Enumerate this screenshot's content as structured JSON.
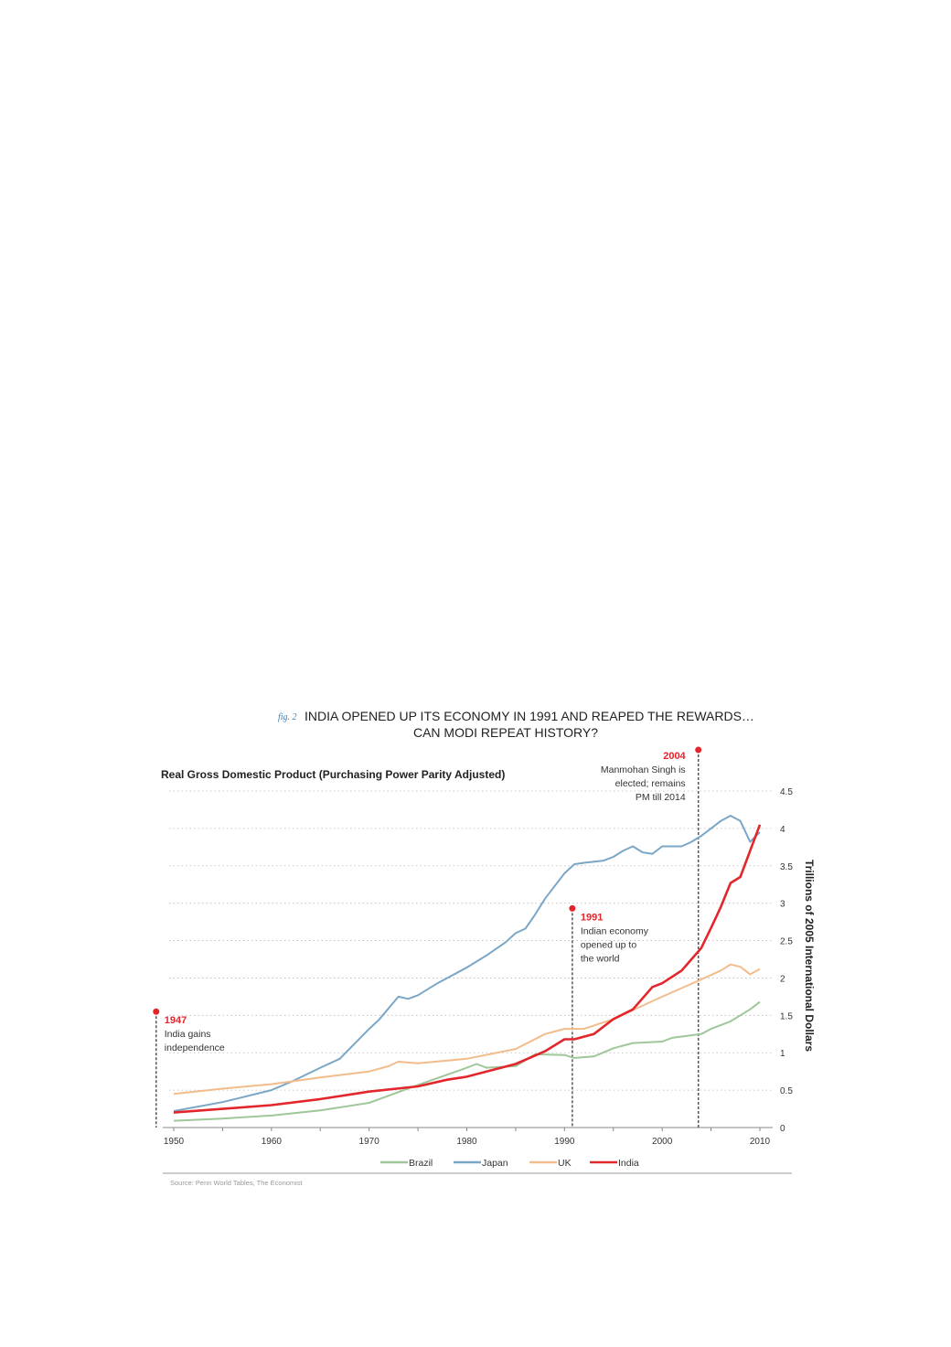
{
  "chart_data": {
    "type": "line",
    "fig_label": "fig. 2",
    "title_line1": "INDIA OPENED UP ITS ECONOMY IN 1991 AND REAPED THE REWARDS…",
    "title_line2": "CAN MODI REPEAT HISTORY?",
    "subtitle": "Real Gross Domestic Product (Purchasing Power Parity Adjusted)",
    "ylabel": "Trillions of 2005 International Dollars",
    "xlabel": "",
    "xlim": [
      1950,
      2010
    ],
    "ylim": [
      0,
      4.5
    ],
    "xticks": [
      "1950",
      "1960",
      "1970",
      "1980",
      "1990",
      "2000",
      "2010"
    ],
    "yticks": [
      "0",
      "0.5",
      "1",
      "1.5",
      "2",
      "2.5",
      "3",
      "3.5",
      "4",
      "4.5"
    ],
    "grid": true,
    "legend_position": "bottom",
    "source": "Source: Penn World Tables, The Economist",
    "series": [
      {
        "name": "Brazil",
        "color": "#9fc79a",
        "points": [
          [
            1950,
            0.09
          ],
          [
            1955,
            0.12
          ],
          [
            1960,
            0.16
          ],
          [
            1965,
            0.23
          ],
          [
            1970,
            0.33
          ],
          [
            1975,
            0.57
          ],
          [
            1980,
            0.8
          ],
          [
            1981,
            0.85
          ],
          [
            1982,
            0.8
          ],
          [
            1985,
            0.82
          ],
          [
            1987,
            0.98
          ],
          [
            1990,
            0.97
          ],
          [
            1991,
            0.93
          ],
          [
            1993,
            0.95
          ],
          [
            1995,
            1.06
          ],
          [
            1997,
            1.13
          ],
          [
            2000,
            1.15
          ],
          [
            2001,
            1.2
          ],
          [
            2004,
            1.25
          ],
          [
            2005,
            1.32
          ],
          [
            2007,
            1.42
          ],
          [
            2009,
            1.58
          ],
          [
            2010,
            1.68
          ]
        ]
      },
      {
        "name": "Japan",
        "color": "#7ba7c7",
        "points": [
          [
            1950,
            0.22
          ],
          [
            1955,
            0.34
          ],
          [
            1960,
            0.5
          ],
          [
            1962,
            0.61
          ],
          [
            1965,
            0.8
          ],
          [
            1967,
            0.92
          ],
          [
            1970,
            1.32
          ],
          [
            1971,
            1.44
          ],
          [
            1973,
            1.75
          ],
          [
            1974,
            1.72
          ],
          [
            1975,
            1.77
          ],
          [
            1977,
            1.93
          ],
          [
            1980,
            2.14
          ],
          [
            1982,
            2.3
          ],
          [
            1984,
            2.48
          ],
          [
            1985,
            2.6
          ],
          [
            1986,
            2.66
          ],
          [
            1987,
            2.85
          ],
          [
            1988,
            3.06
          ],
          [
            1990,
            3.4
          ],
          [
            1991,
            3.52
          ],
          [
            1992,
            3.54
          ],
          [
            1994,
            3.57
          ],
          [
            1995,
            3.62
          ],
          [
            1996,
            3.7
          ],
          [
            1997,
            3.76
          ],
          [
            1998,
            3.68
          ],
          [
            1999,
            3.66
          ],
          [
            2000,
            3.76
          ],
          [
            2002,
            3.76
          ],
          [
            2003,
            3.82
          ],
          [
            2004,
            3.9
          ],
          [
            2005,
            4.0
          ],
          [
            2006,
            4.1
          ],
          [
            2007,
            4.17
          ],
          [
            2008,
            4.1
          ],
          [
            2009,
            3.82
          ],
          [
            2010,
            3.95
          ]
        ]
      },
      {
        "name": "UK",
        "color": "#f2bc8c",
        "points": [
          [
            1950,
            0.45
          ],
          [
            1955,
            0.52
          ],
          [
            1960,
            0.58
          ],
          [
            1965,
            0.67
          ],
          [
            1970,
            0.75
          ],
          [
            1972,
            0.82
          ],
          [
            1973,
            0.88
          ],
          [
            1975,
            0.86
          ],
          [
            1980,
            0.92
          ],
          [
            1985,
            1.05
          ],
          [
            1988,
            1.25
          ],
          [
            1990,
            1.32
          ],
          [
            1992,
            1.32
          ],
          [
            1995,
            1.45
          ],
          [
            2000,
            1.75
          ],
          [
            2004,
            1.98
          ],
          [
            2006,
            2.1
          ],
          [
            2007,
            2.18
          ],
          [
            2008,
            2.15
          ],
          [
            2009,
            2.05
          ],
          [
            2010,
            2.12
          ]
        ]
      },
      {
        "name": "India",
        "color": "#e2262b",
        "points": [
          [
            1950,
            0.2
          ],
          [
            1955,
            0.25
          ],
          [
            1960,
            0.3
          ],
          [
            1965,
            0.38
          ],
          [
            1970,
            0.48
          ],
          [
            1975,
            0.55
          ],
          [
            1978,
            0.64
          ],
          [
            1980,
            0.68
          ],
          [
            1985,
            0.85
          ],
          [
            1988,
            1.02
          ],
          [
            1990,
            1.18
          ],
          [
            1991,
            1.18
          ],
          [
            1993,
            1.25
          ],
          [
            1995,
            1.45
          ],
          [
            1997,
            1.58
          ],
          [
            1999,
            1.88
          ],
          [
            2000,
            1.93
          ],
          [
            2002,
            2.1
          ],
          [
            2003,
            2.25
          ],
          [
            2004,
            2.4
          ],
          [
            2005,
            2.67
          ],
          [
            2006,
            2.95
          ],
          [
            2007,
            3.27
          ],
          [
            2008,
            3.35
          ],
          [
            2009,
            3.7
          ],
          [
            2010,
            4.05
          ]
        ]
      }
    ],
    "annotations": [
      {
        "year": "1947",
        "x": 1948.2,
        "top": 1.55,
        "lines": [
          "India gains",
          "independence"
        ]
      },
      {
        "year": "1991",
        "x": 1990.8,
        "top": 2.93,
        "lines": [
          "Indian economy",
          "opened up to",
          "the world"
        ]
      },
      {
        "year": "2004",
        "x": 2003.7,
        "top": 5.05,
        "lines": [
          "Manmohan Singh is",
          "elected; remains",
          "PM till 2014"
        ]
      }
    ]
  }
}
